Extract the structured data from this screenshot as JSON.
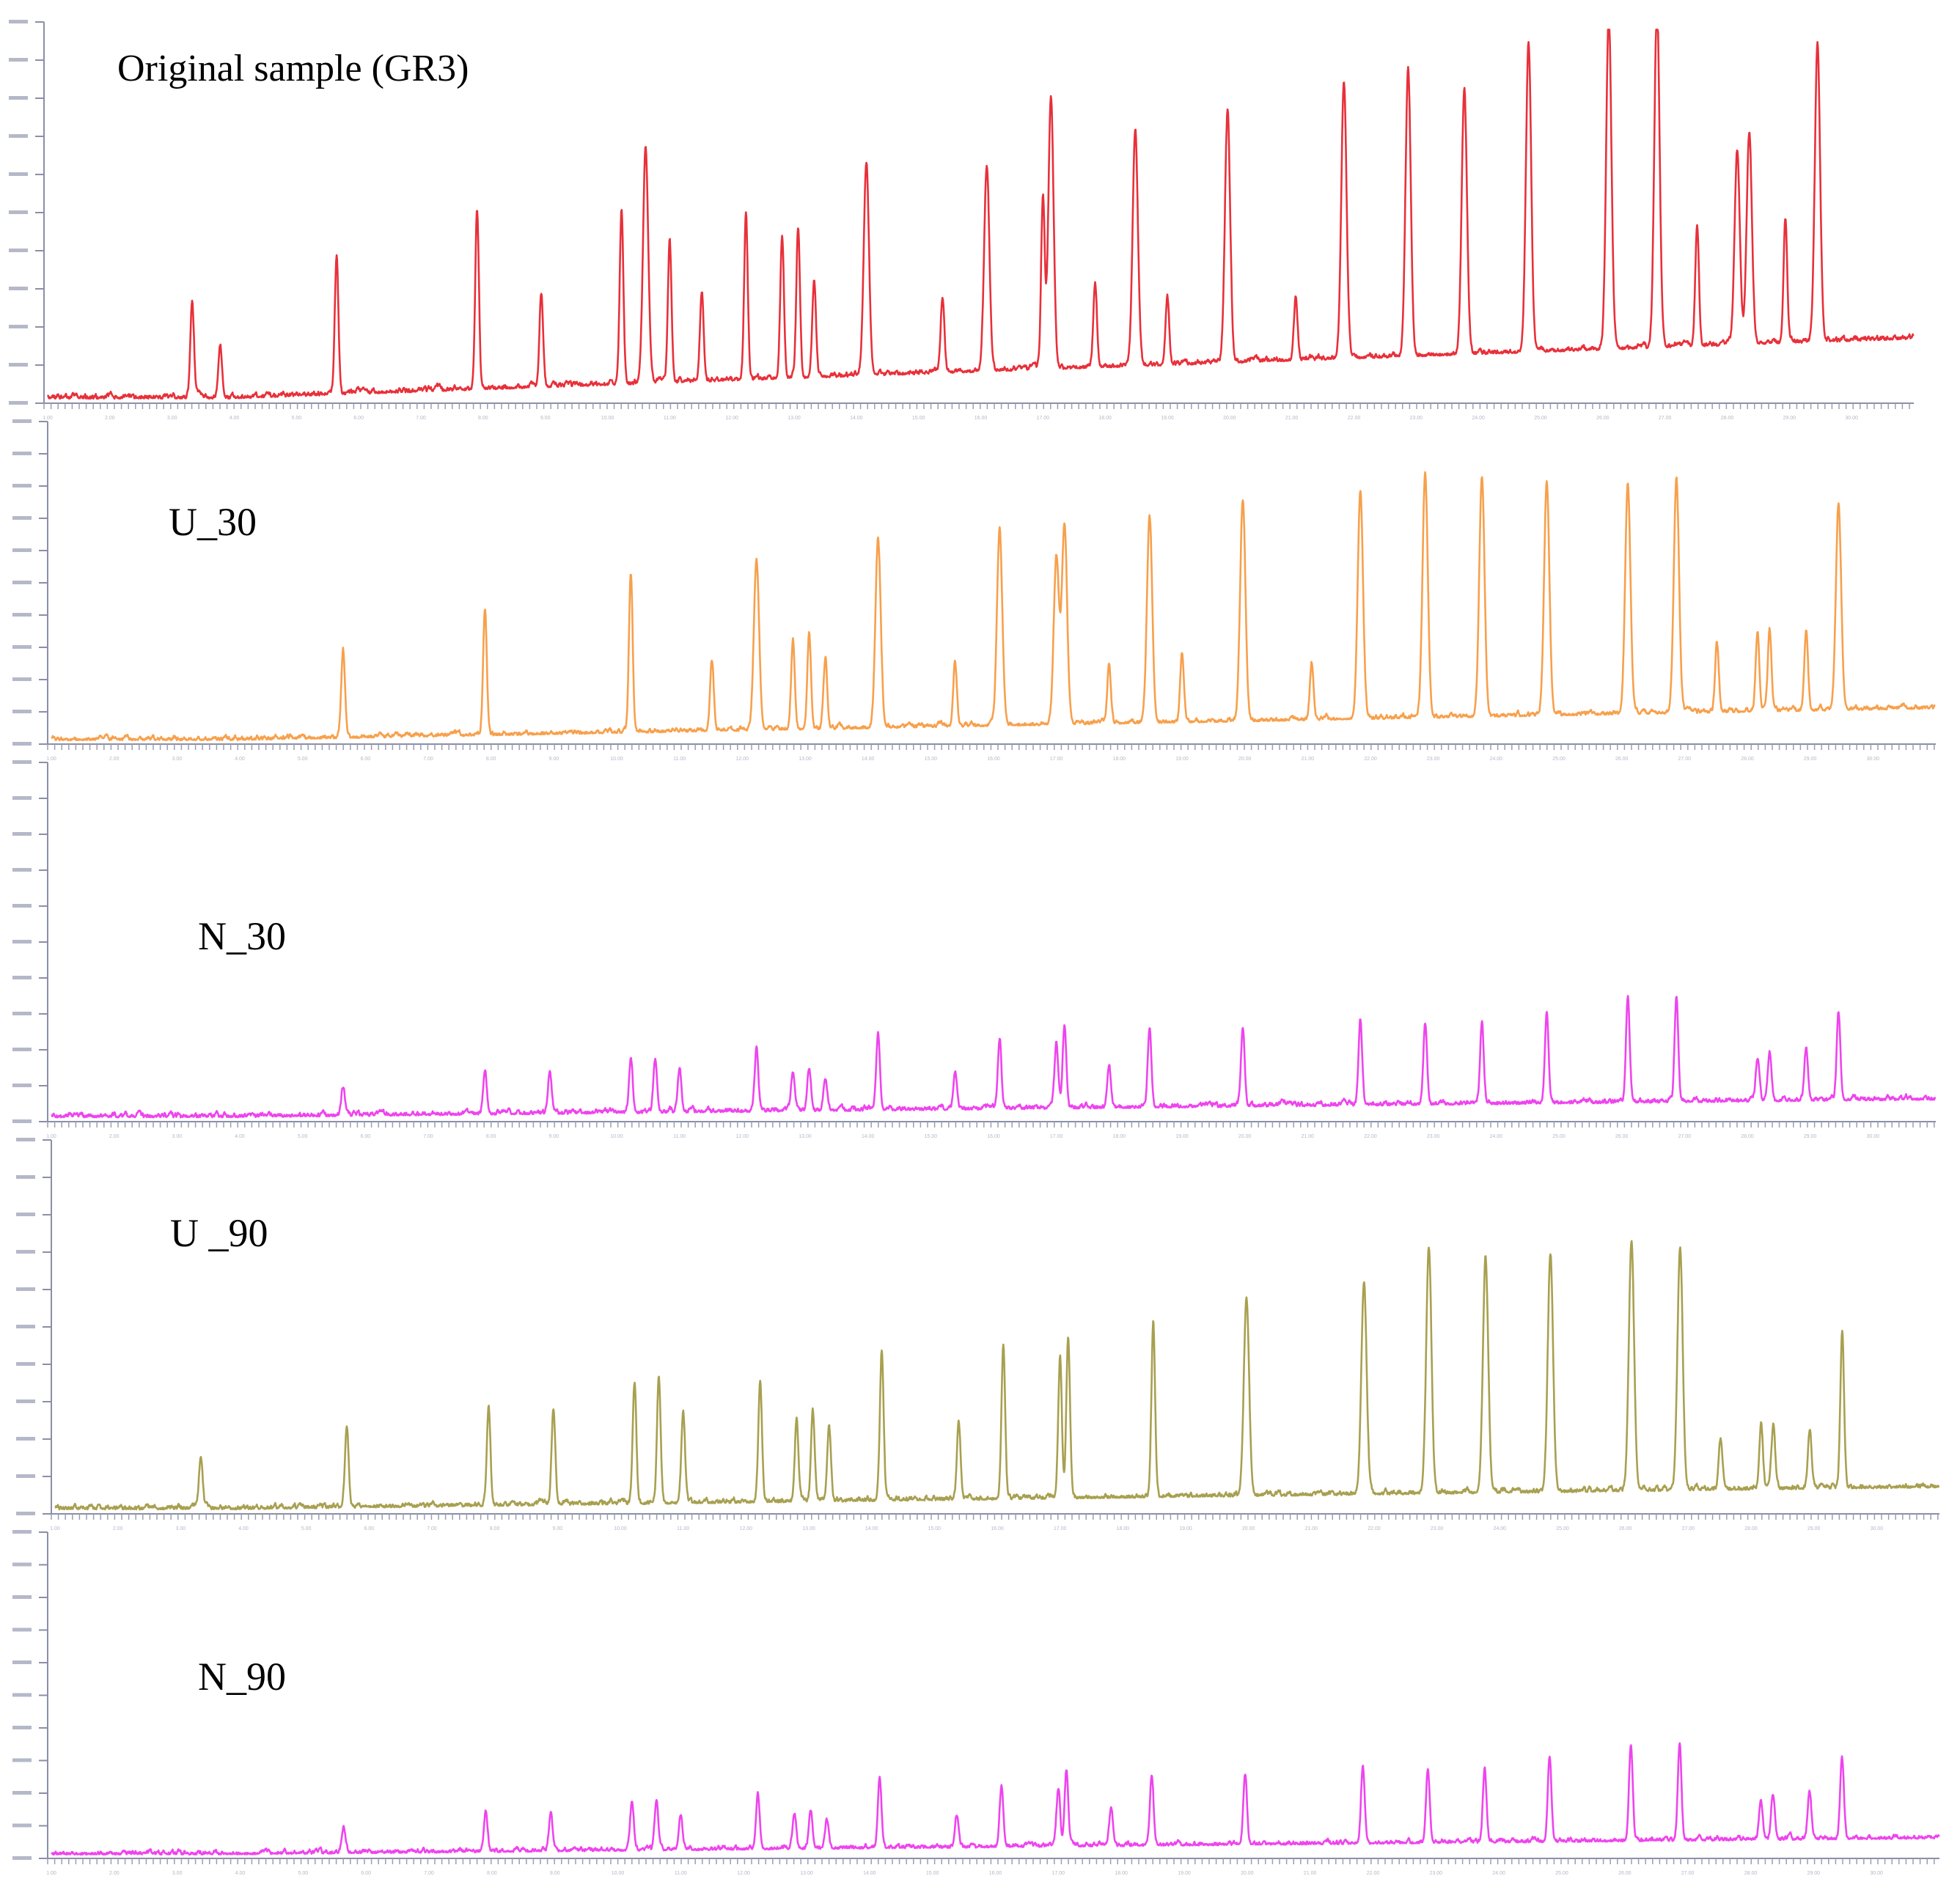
{
  "chart_data": [
    {
      "type": "line",
      "label": "Original sample (GR3)",
      "color": "#e8303a",
      "peaks": [
        [
          7.1,
          0.25
        ],
        [
          7.8,
          0.14
        ],
        [
          10.7,
          0.37
        ],
        [
          14.2,
          0.48
        ],
        [
          15.8,
          0.25
        ],
        [
          17.8,
          0.47
        ],
        [
          18.4,
          0.63
        ],
        [
          19.0,
          0.38
        ],
        [
          19.8,
          0.24
        ],
        [
          20.9,
          0.44
        ],
        [
          21.8,
          0.38
        ],
        [
          22.2,
          0.4
        ],
        [
          22.6,
          0.26
        ],
        [
          23.9,
          0.57
        ],
        [
          25.8,
          0.2
        ],
        [
          26.9,
          0.55
        ],
        [
          28.3,
          0.46
        ],
        [
          28.5,
          0.73
        ],
        [
          29.6,
          0.22
        ],
        [
          30.6,
          0.63
        ],
        [
          31.4,
          0.18
        ],
        [
          32.9,
          0.67
        ],
        [
          34.6,
          0.16
        ],
        [
          35.8,
          0.74
        ],
        [
          37.4,
          0.77
        ],
        [
          38.8,
          0.71
        ],
        [
          40.4,
          0.83
        ],
        [
          42.4,
          0.9
        ],
        [
          43.6,
          0.92
        ],
        [
          44.6,
          0.32
        ],
        [
          45.6,
          0.52
        ],
        [
          45.9,
          0.56
        ],
        [
          46.8,
          0.33
        ],
        [
          47.6,
          0.8
        ]
      ],
      "x_ticks": [
        "1.00",
        "2.00",
        "3.00",
        "4.00",
        "5.00",
        "6.00",
        "7.00",
        "8.00",
        "9.00",
        "10.00",
        "11.00",
        "12.00",
        "13.00",
        "14.00",
        "15.00",
        "16.00",
        "17.00",
        "18.00",
        "19.00",
        "20.00",
        "21.00",
        "22.00",
        "23.00",
        "24.00",
        "25.00",
        "26.00",
        "27.00",
        "28.00",
        "29.00",
        "30.00"
      ]
    },
    {
      "type": "line",
      "label": "U_30",
      "color": "#f7a04c",
      "peaks": [
        [
          10.7,
          0.28
        ],
        [
          14.2,
          0.4
        ],
        [
          17.8,
          0.5
        ],
        [
          19.8,
          0.22
        ],
        [
          20.9,
          0.54
        ],
        [
          21.8,
          0.28
        ],
        [
          22.2,
          0.3
        ],
        [
          22.6,
          0.22
        ],
        [
          23.9,
          0.6
        ],
        [
          25.8,
          0.2
        ],
        [
          26.9,
          0.62
        ],
        [
          28.3,
          0.53
        ],
        [
          28.5,
          0.63
        ],
        [
          29.6,
          0.18
        ],
        [
          30.6,
          0.65
        ],
        [
          31.4,
          0.22
        ],
        [
          32.9,
          0.7
        ],
        [
          34.6,
          0.18
        ],
        [
          35.8,
          0.72
        ],
        [
          37.4,
          0.77
        ],
        [
          38.8,
          0.76
        ],
        [
          40.4,
          0.74
        ],
        [
          42.4,
          0.73
        ],
        [
          43.6,
          0.74
        ],
        [
          44.6,
          0.22
        ],
        [
          45.6,
          0.25
        ],
        [
          45.9,
          0.26
        ],
        [
          46.8,
          0.25
        ],
        [
          47.6,
          0.65
        ]
      ],
      "x_ticks": [
        "1.00",
        "2.00",
        "3.00",
        "4.00",
        "5.00",
        "6.00",
        "7.00",
        "8.00",
        "9.00",
        "10.00",
        "11.00",
        "12.00",
        "13.00",
        "14.00",
        "15.00",
        "16.00",
        "17.00",
        "18.00",
        "19.00",
        "20.00",
        "21.00",
        "22.00",
        "23.00",
        "24.00",
        "25.00",
        "26.00",
        "27.00",
        "28.00",
        "29.00",
        "30.00"
      ]
    },
    {
      "type": "line",
      "label": "N_30",
      "color": "#ee44ee",
      "peaks": [
        [
          10.7,
          0.08
        ],
        [
          14.2,
          0.12
        ],
        [
          15.8,
          0.12
        ],
        [
          17.8,
          0.15
        ],
        [
          18.4,
          0.15
        ],
        [
          19.0,
          0.11
        ],
        [
          20.9,
          0.17
        ],
        [
          21.8,
          0.11
        ],
        [
          22.2,
          0.12
        ],
        [
          22.6,
          0.09
        ],
        [
          23.9,
          0.22
        ],
        [
          25.8,
          0.1
        ],
        [
          26.9,
          0.19
        ],
        [
          28.3,
          0.18
        ],
        [
          28.5,
          0.23
        ],
        [
          29.6,
          0.12
        ],
        [
          30.6,
          0.22
        ],
        [
          32.9,
          0.22
        ],
        [
          35.8,
          0.24
        ],
        [
          37.4,
          0.23
        ],
        [
          38.8,
          0.23
        ],
        [
          40.4,
          0.26
        ],
        [
          42.4,
          0.3
        ],
        [
          43.6,
          0.3
        ],
        [
          45.6,
          0.12
        ],
        [
          45.9,
          0.14
        ],
        [
          46.8,
          0.15
        ],
        [
          47.6,
          0.25
        ]
      ],
      "x_ticks": [
        "1.00",
        "2.00",
        "3.00",
        "4.00",
        "5.00",
        "6.00",
        "7.00",
        "8.00",
        "9.00",
        "10.00",
        "11.00",
        "12.00",
        "13.00",
        "14.00",
        "15.00",
        "16.00",
        "17.00",
        "18.00",
        "19.00",
        "20.00",
        "21.00",
        "22.00",
        "23.00",
        "24.00",
        "25.00",
        "26.00",
        "27.00",
        "28.00",
        "29.00",
        "30.00"
      ]
    },
    {
      "type": "line",
      "label": "U _90",
      "color": "#a8a050",
      "peaks": [
        [
          7.1,
          0.14
        ],
        [
          10.7,
          0.22
        ],
        [
          14.2,
          0.26
        ],
        [
          15.8,
          0.26
        ],
        [
          17.8,
          0.32
        ],
        [
          18.4,
          0.34
        ],
        [
          19.0,
          0.25
        ],
        [
          20.9,
          0.33
        ],
        [
          21.8,
          0.22
        ],
        [
          22.2,
          0.24
        ],
        [
          22.6,
          0.2
        ],
        [
          23.9,
          0.41
        ],
        [
          25.8,
          0.21
        ],
        [
          26.9,
          0.42
        ],
        [
          28.3,
          0.38
        ],
        [
          28.5,
          0.44
        ],
        [
          30.6,
          0.47
        ],
        [
          32.9,
          0.54
        ],
        [
          35.8,
          0.58
        ],
        [
          37.4,
          0.67
        ],
        [
          38.8,
          0.64
        ],
        [
          40.4,
          0.65
        ],
        [
          42.4,
          0.68
        ],
        [
          43.6,
          0.65
        ],
        [
          44.6,
          0.14
        ],
        [
          45.6,
          0.17
        ],
        [
          45.9,
          0.17
        ],
        [
          46.8,
          0.16
        ],
        [
          47.6,
          0.43
        ]
      ],
      "x_ticks": [
        "1.00",
        "2.00",
        "3.00",
        "4.00",
        "5.00",
        "6.00",
        "7.00",
        "8.00",
        "9.00",
        "10.00",
        "11.00",
        "12.00",
        "13.00",
        "14.00",
        "15.00",
        "16.00",
        "17.00",
        "18.00",
        "19.00",
        "20.00",
        "21.00",
        "22.00",
        "23.00",
        "24.00",
        "25.00",
        "26.00",
        "27.00",
        "28.00",
        "29.00",
        "30.00"
      ]
    },
    {
      "type": "line",
      "label": "N_90",
      "color": "#ee44ee",
      "peaks": [
        [
          10.7,
          0.08
        ],
        [
          14.2,
          0.12
        ],
        [
          15.8,
          0.12
        ],
        [
          17.8,
          0.15
        ],
        [
          18.4,
          0.15
        ],
        [
          19.0,
          0.11
        ],
        [
          20.9,
          0.17
        ],
        [
          21.8,
          0.11
        ],
        [
          22.2,
          0.12
        ],
        [
          22.6,
          0.09
        ],
        [
          23.9,
          0.22
        ],
        [
          25.8,
          0.1
        ],
        [
          26.9,
          0.19
        ],
        [
          28.3,
          0.18
        ],
        [
          28.5,
          0.23
        ],
        [
          29.6,
          0.12
        ],
        [
          30.6,
          0.22
        ],
        [
          32.9,
          0.22
        ],
        [
          35.8,
          0.24
        ],
        [
          37.4,
          0.23
        ],
        [
          38.8,
          0.23
        ],
        [
          40.4,
          0.26
        ],
        [
          42.4,
          0.3
        ],
        [
          43.6,
          0.3
        ],
        [
          45.6,
          0.12
        ],
        [
          45.9,
          0.14
        ],
        [
          46.8,
          0.15
        ],
        [
          47.6,
          0.25
        ]
      ],
      "x_ticks": [
        "1.00",
        "2.00",
        "3.00",
        "4.00",
        "5.00",
        "6.00",
        "7.00",
        "8.00",
        "9.00",
        "10.00",
        "11.00",
        "12.00",
        "13.00",
        "14.00",
        "15.00",
        "16.00",
        "17.00",
        "18.00",
        "19.00",
        "20.00",
        "21.00",
        "22.00",
        "23.00",
        "24.00",
        "25.00",
        "26.00",
        "27.00",
        "28.00",
        "29.00",
        "30.00"
      ]
    }
  ]
}
